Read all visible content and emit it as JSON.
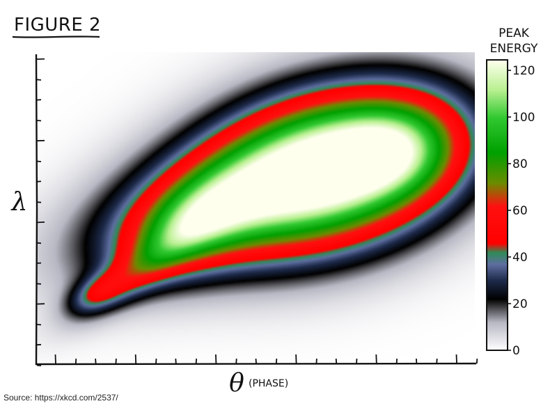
{
  "chart_data": {
    "type": "heatmap",
    "title": "FIGURE 2",
    "xlabel": "θ",
    "xlabel_note": "(PHASE)",
    "ylabel": "λ",
    "colorbar": {
      "title_lines": [
        "PEAK",
        "ENERGY"
      ],
      "ticks": [
        "120",
        "100",
        "80",
        "60",
        "40",
        "20",
        "0"
      ],
      "range": [
        0,
        125
      ],
      "colormap": [
        {
          "value": 0,
          "color": "#ffffff"
        },
        {
          "value": 12,
          "color": "#b8b8c4"
        },
        {
          "value": 22,
          "color": "#000000"
        },
        {
          "value": 30,
          "color": "#1d2a4a"
        },
        {
          "value": 37,
          "color": "#5e6ea0"
        },
        {
          "value": 42,
          "color": "#2e8b57"
        },
        {
          "value": 46,
          "color": "#ff0000"
        },
        {
          "value": 62,
          "color": "#ff1010"
        },
        {
          "value": 72,
          "color": "#6a8c00"
        },
        {
          "value": 85,
          "color": "#00a000"
        },
        {
          "value": 100,
          "color": "#30c830"
        },
        {
          "value": 112,
          "color": "#b8f090"
        },
        {
          "value": 125,
          "color": "#ffffee"
        }
      ]
    },
    "grid": false,
    "legend_placement": "right",
    "ticks_shown_without_labels": true
  },
  "source": "Source: https://xkcd.com/2537/"
}
